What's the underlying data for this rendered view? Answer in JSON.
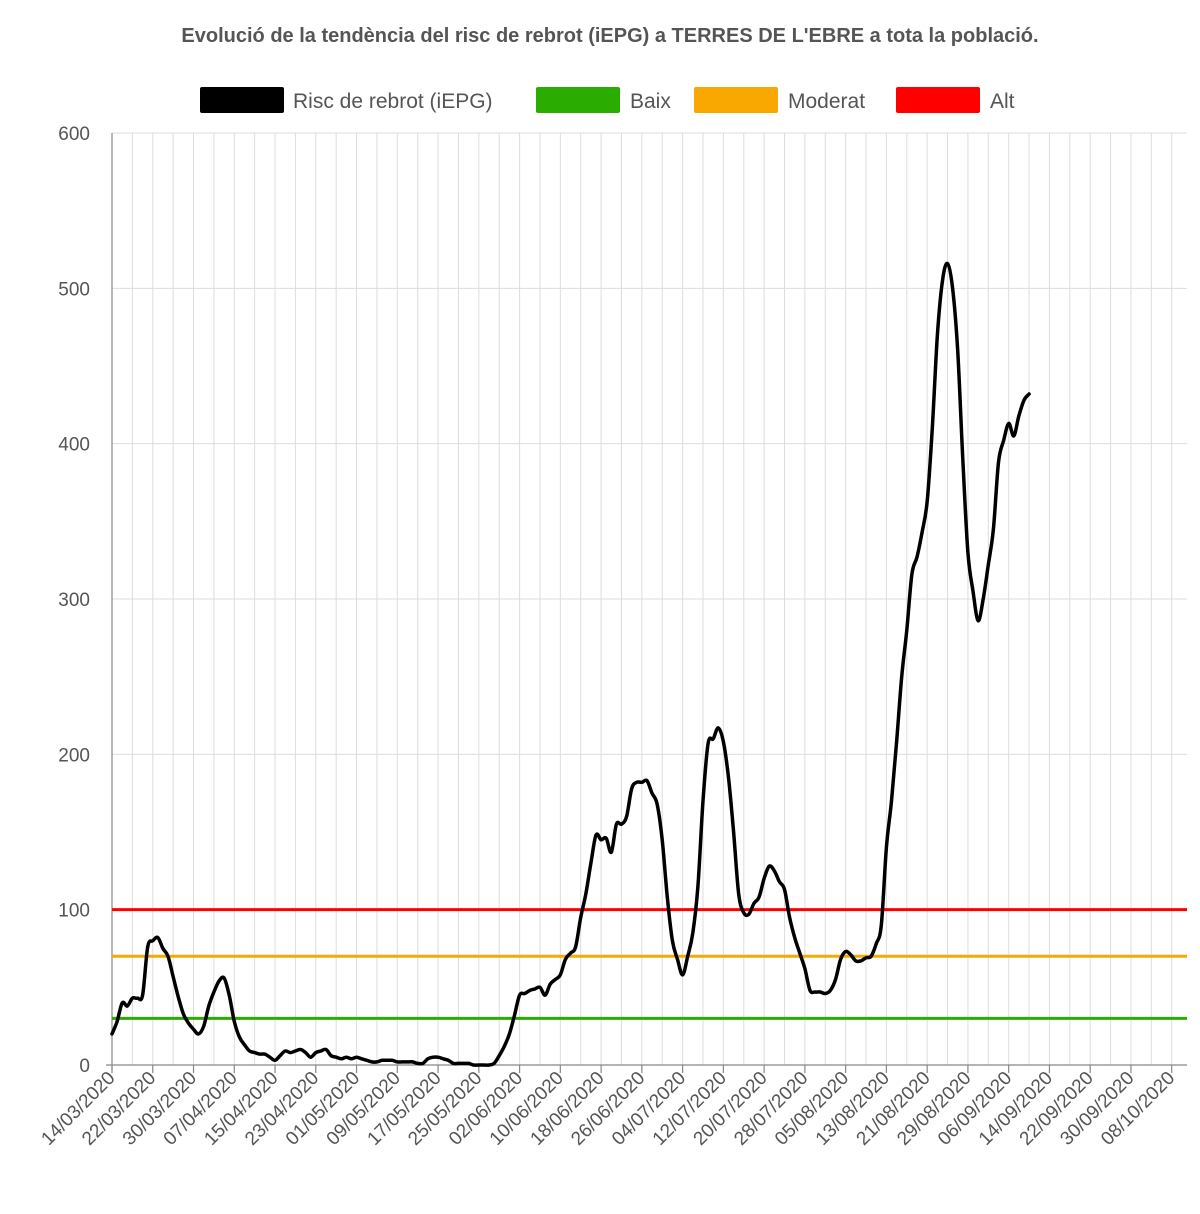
{
  "chart_data": {
    "type": "line",
    "title": "Evolució de la tendència del risc de rebrot (iEPG) a TERRES DE L'EBRE a tota la població.",
    "xlabel": "",
    "ylabel": "",
    "ylim": [
      0,
      600
    ],
    "yticks": [
      0,
      100,
      200,
      300,
      400,
      500,
      600
    ],
    "x_start": "14/03/2020",
    "x_end": "11/10/2020",
    "x_tick_labels": [
      "14/03/2020",
      "22/03/2020",
      "30/03/2020",
      "07/04/2020",
      "15/04/2020",
      "23/04/2020",
      "01/05/2020",
      "09/05/2020",
      "17/05/2020",
      "25/05/2020",
      "02/06/2020",
      "10/06/2020",
      "18/06/2020",
      "26/06/2020",
      "04/07/2020",
      "12/07/2020",
      "20/07/2020",
      "28/07/2020",
      "05/08/2020",
      "13/08/2020",
      "21/08/2020",
      "29/08/2020",
      "06/09/2020",
      "14/09/2020",
      "22/09/2020",
      "30/09/2020",
      "08/10/2020"
    ],
    "grid": true,
    "legend_position": "top",
    "series": [
      {
        "name": "Risc de rebrot (iEPG)",
        "color": "#000000",
        "points": [
          [
            "14/03/2020",
            20
          ],
          [
            "15/03/2020",
            28
          ],
          [
            "16/03/2020",
            40
          ],
          [
            "17/03/2020",
            38
          ],
          [
            "18/03/2020",
            43
          ],
          [
            "19/03/2020",
            43
          ],
          [
            "20/03/2020",
            45
          ],
          [
            "21/03/2020",
            76
          ],
          [
            "22/03/2020",
            80
          ],
          [
            "23/03/2020",
            82
          ],
          [
            "24/03/2020",
            75
          ],
          [
            "25/03/2020",
            70
          ],
          [
            "26/03/2020",
            57
          ],
          [
            "27/03/2020",
            44
          ],
          [
            "28/03/2020",
            33
          ],
          [
            "29/03/2020",
            27
          ],
          [
            "30/03/2020",
            23
          ],
          [
            "31/03/2020",
            20
          ],
          [
            "01/04/2020",
            25
          ],
          [
            "02/04/2020",
            38
          ],
          [
            "03/04/2020",
            47
          ],
          [
            "04/04/2020",
            54
          ],
          [
            "05/04/2020",
            56
          ],
          [
            "06/04/2020",
            45
          ],
          [
            "07/04/2020",
            28
          ],
          [
            "08/04/2020",
            18
          ],
          [
            "09/04/2020",
            13
          ],
          [
            "10/04/2020",
            9
          ],
          [
            "11/04/2020",
            8
          ],
          [
            "12/04/2020",
            7
          ],
          [
            "13/04/2020",
            7
          ],
          [
            "14/04/2020",
            5
          ],
          [
            "15/04/2020",
            3
          ],
          [
            "16/04/2020",
            6
          ],
          [
            "17/04/2020",
            9
          ],
          [
            "18/04/2020",
            8
          ],
          [
            "19/04/2020",
            9
          ],
          [
            "20/04/2020",
            10
          ],
          [
            "21/04/2020",
            8
          ],
          [
            "22/04/2020",
            5
          ],
          [
            "23/04/2020",
            8
          ],
          [
            "24/04/2020",
            9
          ],
          [
            "25/04/2020",
            10
          ],
          [
            "26/04/2020",
            6
          ],
          [
            "27/04/2020",
            5
          ],
          [
            "28/04/2020",
            4
          ],
          [
            "29/04/2020",
            5
          ],
          [
            "30/04/2020",
            4
          ],
          [
            "01/05/2020",
            5
          ],
          [
            "02/05/2020",
            4
          ],
          [
            "03/05/2020",
            3
          ],
          [
            "04/05/2020",
            2
          ],
          [
            "05/05/2020",
            2
          ],
          [
            "06/05/2020",
            3
          ],
          [
            "07/05/2020",
            3
          ],
          [
            "08/05/2020",
            3
          ],
          [
            "09/05/2020",
            2
          ],
          [
            "10/05/2020",
            2
          ],
          [
            "11/05/2020",
            2
          ],
          [
            "12/05/2020",
            2
          ],
          [
            "13/05/2020",
            1
          ],
          [
            "14/05/2020",
            1
          ],
          [
            "15/05/2020",
            4
          ],
          [
            "16/05/2020",
            5
          ],
          [
            "17/05/2020",
            5
          ],
          [
            "18/05/2020",
            4
          ],
          [
            "19/05/2020",
            3
          ],
          [
            "20/05/2020",
            1
          ],
          [
            "21/05/2020",
            1
          ],
          [
            "22/05/2020",
            1
          ],
          [
            "23/05/2020",
            1
          ],
          [
            "24/05/2020",
            0
          ],
          [
            "25/05/2020",
            0
          ],
          [
            "26/05/2020",
            0
          ],
          [
            "27/05/2020",
            0
          ],
          [
            "28/05/2020",
            1
          ],
          [
            "29/05/2020",
            6
          ],
          [
            "30/05/2020",
            12
          ],
          [
            "31/05/2020",
            20
          ],
          [
            "01/06/2020",
            32
          ],
          [
            "02/06/2020",
            45
          ],
          [
            "03/06/2020",
            46
          ],
          [
            "04/06/2020",
            48
          ],
          [
            "05/06/2020",
            49
          ],
          [
            "06/06/2020",
            50
          ],
          [
            "07/06/2020",
            45
          ],
          [
            "08/06/2020",
            52
          ],
          [
            "09/06/2020",
            55
          ],
          [
            "10/06/2020",
            58
          ],
          [
            "11/06/2020",
            68
          ],
          [
            "12/06/2020",
            72
          ],
          [
            "13/06/2020",
            76
          ],
          [
            "14/06/2020",
            95
          ],
          [
            "15/06/2020",
            110
          ],
          [
            "16/06/2020",
            130
          ],
          [
            "17/06/2020",
            148
          ],
          [
            "18/06/2020",
            145
          ],
          [
            "19/06/2020",
            146
          ],
          [
            "20/06/2020",
            137
          ],
          [
            "21/06/2020",
            155
          ],
          [
            "22/06/2020",
            155
          ],
          [
            "23/06/2020",
            160
          ],
          [
            "24/06/2020",
            178
          ],
          [
            "25/06/2020",
            182
          ],
          [
            "26/06/2020",
            182
          ],
          [
            "27/06/2020",
            183
          ],
          [
            "28/06/2020",
            175
          ],
          [
            "29/06/2020",
            168
          ],
          [
            "30/06/2020",
            145
          ],
          [
            "01/07/2020",
            108
          ],
          [
            "02/07/2020",
            80
          ],
          [
            "03/07/2020",
            68
          ],
          [
            "04/07/2020",
            58
          ],
          [
            "05/07/2020",
            70
          ],
          [
            "06/07/2020",
            85
          ],
          [
            "07/07/2020",
            115
          ],
          [
            "08/07/2020",
            170
          ],
          [
            "09/07/2020",
            207
          ],
          [
            "10/07/2020",
            210
          ],
          [
            "11/07/2020",
            217
          ],
          [
            "12/07/2020",
            208
          ],
          [
            "13/07/2020",
            185
          ],
          [
            "14/07/2020",
            150
          ],
          [
            "15/07/2020",
            110
          ],
          [
            "16/07/2020",
            98
          ],
          [
            "17/07/2020",
            97
          ],
          [
            "18/07/2020",
            104
          ],
          [
            "19/07/2020",
            108
          ],
          [
            "20/07/2020",
            120
          ],
          [
            "21/07/2020",
            128
          ],
          [
            "22/07/2020",
            125
          ],
          [
            "23/07/2020",
            118
          ],
          [
            "24/07/2020",
            113
          ],
          [
            "25/07/2020",
            95
          ],
          [
            "26/07/2020",
            82
          ],
          [
            "27/07/2020",
            72
          ],
          [
            "28/07/2020",
            62
          ],
          [
            "29/07/2020",
            48
          ],
          [
            "30/07/2020",
            47
          ],
          [
            "31/07/2020",
            47
          ],
          [
            "01/08/2020",
            46
          ],
          [
            "02/08/2020",
            48
          ],
          [
            "03/08/2020",
            55
          ],
          [
            "04/08/2020",
            68
          ],
          [
            "05/08/2020",
            73
          ],
          [
            "06/08/2020",
            71
          ],
          [
            "07/08/2020",
            67
          ],
          [
            "08/08/2020",
            67
          ],
          [
            "09/08/2020",
            69
          ],
          [
            "10/08/2020",
            70
          ],
          [
            "11/08/2020",
            78
          ],
          [
            "12/08/2020",
            90
          ],
          [
            "13/08/2020",
            140
          ],
          [
            "14/08/2020",
            170
          ],
          [
            "15/08/2020",
            208
          ],
          [
            "16/08/2020",
            250
          ],
          [
            "17/08/2020",
            280
          ],
          [
            "18/08/2020",
            316
          ],
          [
            "19/08/2020",
            327
          ],
          [
            "20/08/2020",
            343
          ],
          [
            "21/08/2020",
            363
          ],
          [
            "22/08/2020",
            410
          ],
          [
            "23/08/2020",
            470
          ],
          [
            "24/08/2020",
            505
          ],
          [
            "25/08/2020",
            516
          ],
          [
            "26/08/2020",
            500
          ],
          [
            "27/08/2020",
            460
          ],
          [
            "28/08/2020",
            390
          ],
          [
            "29/08/2020",
            330
          ],
          [
            "30/08/2020",
            305
          ],
          [
            "31/08/2020",
            286
          ],
          [
            "01/09/2020",
            300
          ],
          [
            "02/09/2020",
            322
          ],
          [
            "03/09/2020",
            345
          ],
          [
            "04/09/2020",
            388
          ],
          [
            "05/09/2020",
            402
          ],
          [
            "06/09/2020",
            413
          ],
          [
            "07/09/2020",
            405
          ],
          [
            "08/09/2020",
            418
          ],
          [
            "09/09/2020",
            428
          ],
          [
            "10/09/2020",
            432
          ]
        ]
      },
      {
        "name": "Baix",
        "color": "#2aad00",
        "value": 30
      },
      {
        "name": "Moderat",
        "color": "#f8a800",
        "value": 70
      },
      {
        "name": "Alt",
        "color": "#ff0000",
        "value": 100
      }
    ]
  }
}
